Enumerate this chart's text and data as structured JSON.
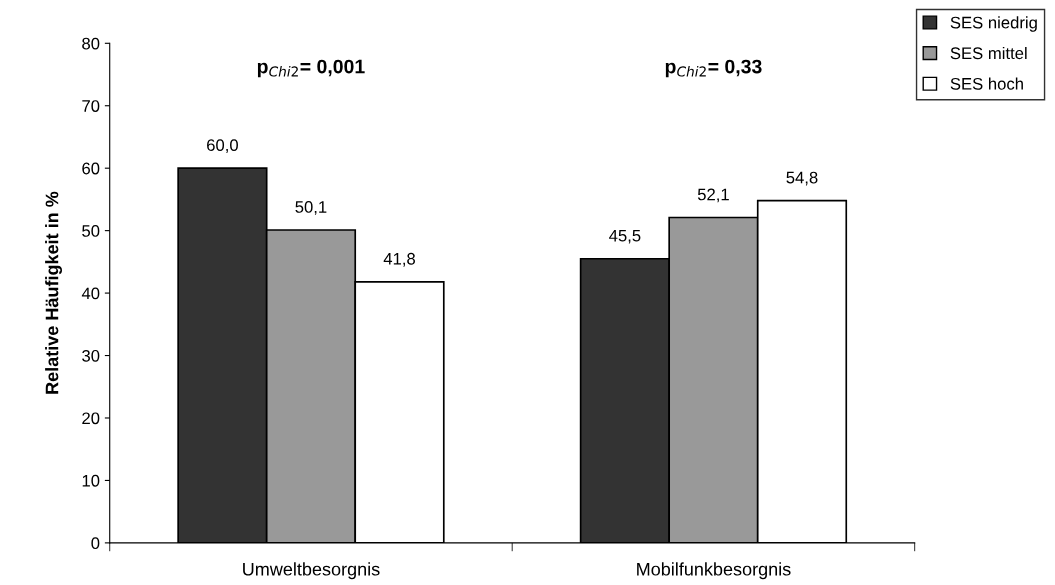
{
  "chart_data": {
    "type": "bar",
    "ylabel": "Relative Häufigkeit in %",
    "categories": [
      "Umweltbesorgnis",
      "Mobilfunkbesorgnis"
    ],
    "series": [
      {
        "name": "SES niedrig",
        "color": "#333333",
        "values": [
          60.0,
          45.5
        ],
        "value_labels": [
          "60,0",
          "45,5"
        ]
      },
      {
        "name": "SES mittel",
        "color": "#999999",
        "values": [
          50.1,
          52.1
        ],
        "value_labels": [
          "50,1",
          "52,1"
        ]
      },
      {
        "name": "SES hoch",
        "color": "#ffffff",
        "values": [
          41.8,
          54.8
        ],
        "value_labels": [
          "41,8",
          "54,8"
        ]
      }
    ],
    "ylim": [
      0,
      80
    ],
    "yticks": [
      0,
      10,
      20,
      30,
      40,
      50,
      60,
      70,
      80
    ],
    "grid": false,
    "legend": "top right",
    "annotations": [
      "p$_{Chi2}$= 0,001",
      "p$_{Chi2}$= 0,33"
    ]
  }
}
